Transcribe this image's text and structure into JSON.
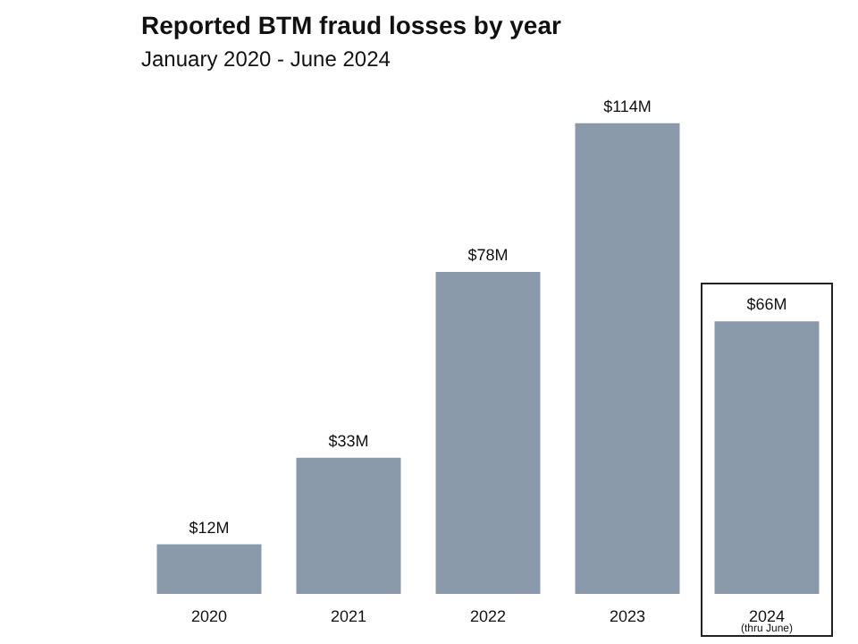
{
  "chart_data": {
    "type": "bar",
    "title": "Reported BTM fraud losses by year",
    "subtitle": "January 2020 - June 2024",
    "categories": [
      "2020",
      "2021",
      "2022",
      "2023",
      "2024\n(thru June)"
    ],
    "values": [
      12,
      33,
      78,
      114,
      66
    ],
    "value_labels": [
      "$12M",
      "$33M",
      "$78M",
      "$114M",
      "$66M"
    ],
    "color": "#8a9aab"
  }
}
